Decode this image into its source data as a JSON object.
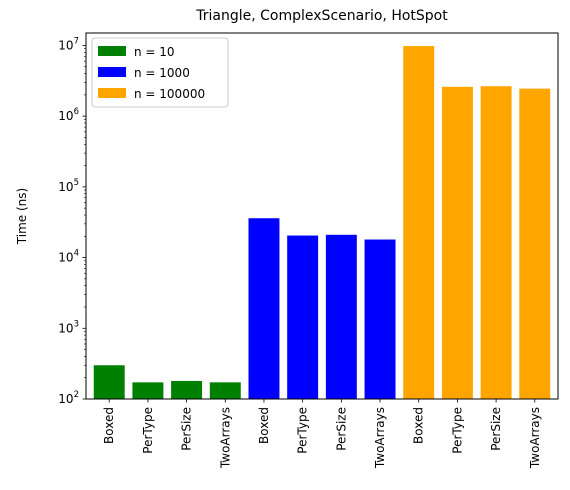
{
  "chart_data": {
    "type": "bar",
    "title": "Triangle, ComplexScenario, HotSpot",
    "xlabel": "",
    "ylabel": "Time (ns)",
    "yscale": "log",
    "ylim": [
      100,
      15000000
    ],
    "y_tick_labels": [
      {
        "value": 100,
        "base": "10",
        "exp": "2"
      },
      {
        "value": 1000,
        "base": "10",
        "exp": "3"
      },
      {
        "value": 10000,
        "base": "10",
        "exp": "4"
      },
      {
        "value": 100000,
        "base": "10",
        "exp": "5"
      },
      {
        "value": 1000000,
        "base": "10",
        "exp": "6"
      },
      {
        "value": 10000000,
        "base": "10",
        "exp": "7"
      }
    ],
    "legend_position": "top-left",
    "series": [
      {
        "name": "n = 10",
        "color": "#008000",
        "categories": [
          "Boxed",
          "PerType",
          "PerSize",
          "TwoArrays"
        ],
        "values": [
          300,
          172,
          180,
          172
        ]
      },
      {
        "name": "n = 1000",
        "color": "#0000ff",
        "categories": [
          "Boxed",
          "PerType",
          "PerSize",
          "TwoArrays"
        ],
        "values": [
          36000,
          20500,
          21000,
          18000
        ]
      },
      {
        "name": "n = 100000",
        "color": "#ffa500",
        "categories": [
          "Boxed",
          "PerType",
          "PerSize",
          "TwoArrays"
        ],
        "values": [
          9800000,
          2600000,
          2650000,
          2450000
        ]
      }
    ]
  }
}
